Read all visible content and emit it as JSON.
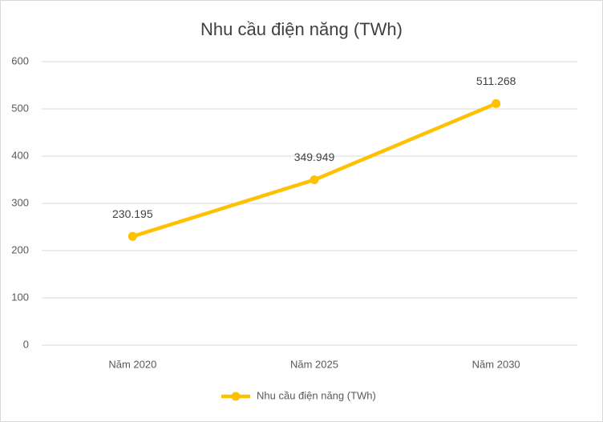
{
  "chart_data": {
    "type": "line",
    "title": "Nhu cầu điện năng (TWh)",
    "categories": [
      "Năm 2020",
      "Năm 2025",
      "Năm 2030"
    ],
    "series": [
      {
        "name": "Nhu cầu điện năng (TWh)",
        "color": "#ffc000",
        "values": [
          230.195,
          349.949,
          511.268
        ]
      }
    ],
    "ylim": [
      0,
      600
    ],
    "yticks": [
      0,
      100,
      200,
      300,
      400,
      500,
      600
    ],
    "grid": true,
    "legend": "bottom"
  }
}
